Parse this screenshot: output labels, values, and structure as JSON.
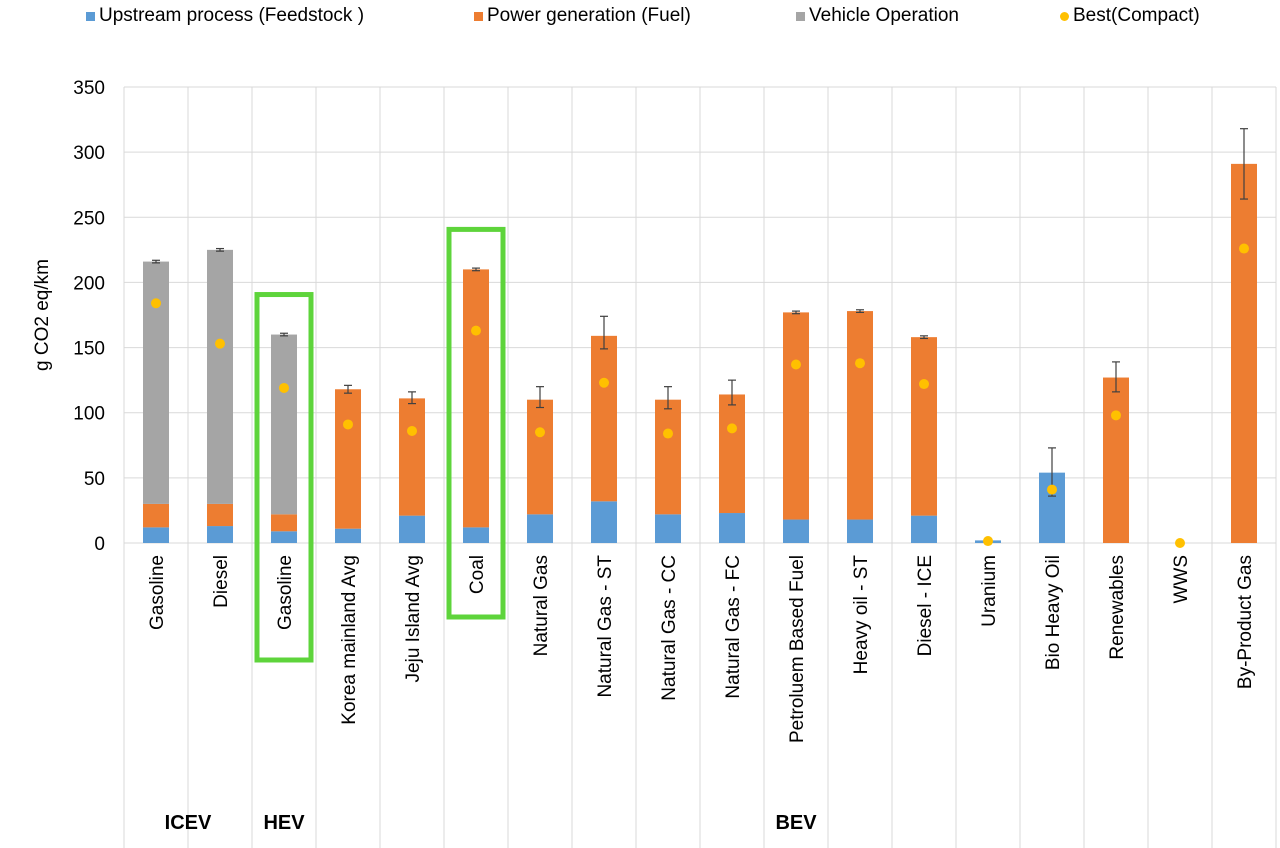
{
  "chart_data": {
    "type": "bar",
    "stacked": true,
    "ylabel": "g CO2 eq/km",
    "ylim": [
      0,
      350
    ],
    "yticks": [
      0,
      50,
      100,
      150,
      200,
      250,
      300,
      350
    ],
    "grid": true,
    "legend_position": "top",
    "categories": [
      "Gasoline",
      "Diesel",
      "Gasoline",
      "Korea mainland Avg",
      "Jeju Island Avg",
      "Coal",
      "Natural Gas",
      "Natural Gas - ST",
      "Natural Gas - CC",
      "Natural Gas - FC",
      "Petroluem Based Fuel",
      "Heavy oil - ST",
      "Diesel - ICE",
      "Uranium",
      "Bio Heavy Oil",
      "Renewables",
      "WWS",
      "By-Product Gas"
    ],
    "groups": [
      {
        "label": "ICEV",
        "start": 0,
        "end": 1
      },
      {
        "label": "HEV",
        "start": 2,
        "end": 2
      },
      {
        "label": "BEV",
        "start": 3,
        "end": 17
      }
    ],
    "highlighted": [
      2,
      5
    ],
    "series": [
      {
        "name": "Upstream process (Feedstock )",
        "color": "#5b9bd5",
        "values": [
          12,
          13,
          9,
          11,
          21,
          12,
          22,
          32,
          22,
          23,
          18,
          18,
          21,
          2,
          54,
          0,
          0,
          0
        ]
      },
      {
        "name": "Power generation (Fuel)",
        "color": "#ed7d31",
        "values": [
          18,
          17,
          13,
          107,
          90,
          198,
          88,
          127,
          88,
          91,
          159,
          160,
          137,
          0,
          0,
          127,
          0,
          291
        ]
      },
      {
        "name": "Vehicle Operation",
        "color": "#a5a5a5",
        "values": [
          186,
          195,
          138,
          0,
          0,
          0,
          0,
          0,
          0,
          0,
          0,
          0,
          0,
          0,
          0,
          0,
          0,
          0
        ]
      }
    ],
    "error_bars": [
      {
        "low": 215,
        "high": 217
      },
      {
        "low": 224,
        "high": 226
      },
      {
        "low": 159,
        "high": 161
      },
      {
        "low": 115,
        "high": 121
      },
      {
        "low": 107,
        "high": 116
      },
      {
        "low": 209,
        "high": 211
      },
      {
        "low": 104,
        "high": 120
      },
      {
        "low": 149,
        "high": 174
      },
      {
        "low": 103,
        "high": 120
      },
      {
        "low": 106,
        "high": 125
      },
      {
        "low": 176,
        "high": 178
      },
      {
        "low": 177,
        "high": 179
      },
      {
        "low": 157,
        "high": 159
      },
      null,
      {
        "low": 36,
        "high": 73
      },
      {
        "low": 116,
        "high": 139
      },
      null,
      {
        "low": 264,
        "high": 318
      }
    ],
    "best": {
      "name": "Best(Compact)",
      "color": "#ffc000",
      "values": [
        184,
        153,
        119,
        91,
        86,
        163,
        85,
        123,
        84,
        88,
        137,
        138,
        122,
        1.5,
        41,
        98,
        0,
        226
      ]
    }
  }
}
